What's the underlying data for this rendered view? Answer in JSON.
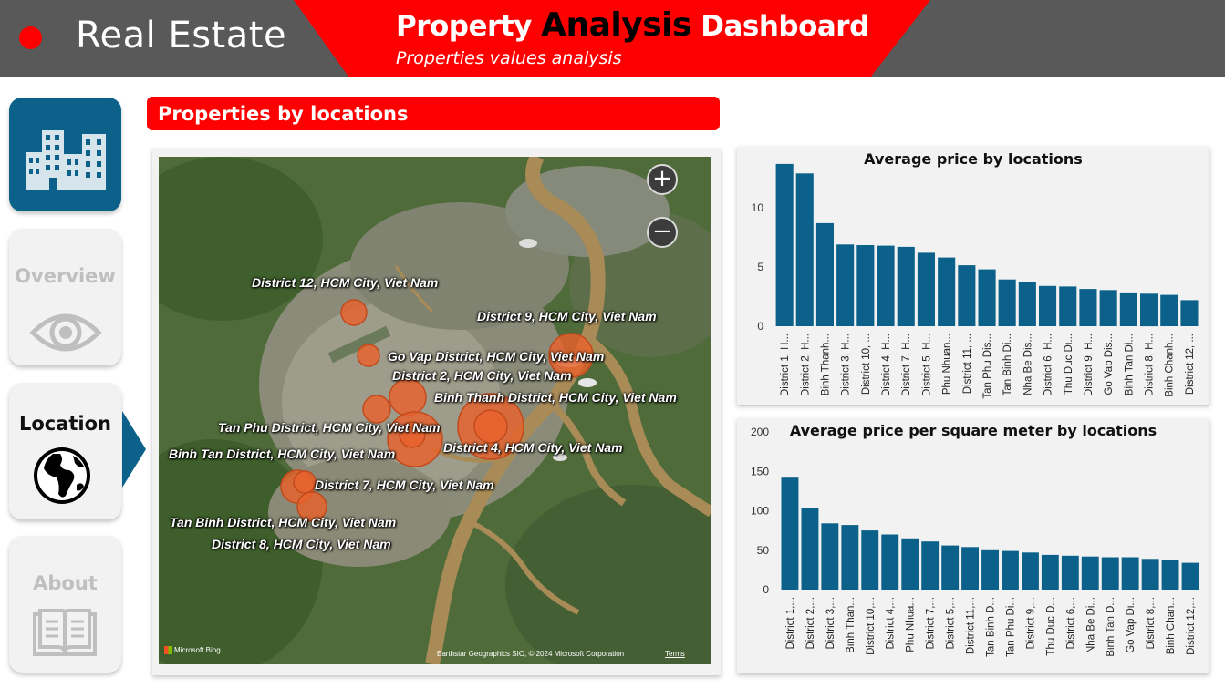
{
  "header": {
    "brand": "Real Estate",
    "title_pre": "Property ",
    "title_accent": "Analysis",
    "title_post": " Dashboard",
    "subtitle": "Properties values analysis"
  },
  "nav": {
    "home_icon": "buildings-icon",
    "items": [
      {
        "label": "Overview",
        "icon": "eye-icon",
        "active": false
      },
      {
        "label": "Location",
        "icon": "globe-icon",
        "active": true
      },
      {
        "label": "About",
        "icon": "book-icon",
        "active": false
      }
    ]
  },
  "section": {
    "title": "Properties by locations"
  },
  "map": {
    "zoom_in": "+",
    "zoom_out": "−",
    "logo": "Microsoft Bing",
    "attribution": "Earthstar Geographics SIO, © 2024 Microsoft Corporation",
    "terms": "Terms",
    "labels": [
      "District 12, HCM City, Viet Nam",
      "District 9, HCM City, Viet Nam",
      "Go Vap District, HCM City, Viet Nam",
      "District 2, HCM City, Viet Nam",
      "Binh Thanh District, HCM City, Viet Nam",
      "Tan Phu District, HCM City, Viet Nam",
      "Binh Tan District, HCM City, Viet Nam",
      "District 4, HCM City, Viet Nam",
      "District 7, HCM City, Viet Nam",
      "Tan Binh District, HCM City, Viet Nam",
      "District 8, HCM City, Viet Nam"
    ]
  },
  "colors": {
    "accent": "#ff0000",
    "header": "#595959",
    "bar": "#0b6189",
    "bubble": "#e8612c"
  },
  "chart_data": [
    {
      "type": "bar",
      "title": "Average price by locations",
      "xlabel": "",
      "ylabel": "",
      "ylim": [
        0,
        14
      ],
      "yticks": [
        0,
        5,
        10
      ],
      "grid": false,
      "categories": [
        "District 1, H...",
        "District 2, H...",
        "Binh Thanh...",
        "District 3, H...",
        "District 10, ...",
        "District 4, H...",
        "District 7, H...",
        "District 5, H...",
        "Phu Nhuan...",
        "District 11, ...",
        "Tan Phu Dis...",
        "Tan Binh Di...",
        "Nha Be Dis...",
        "District 6, H...",
        "Thu Duc Di...",
        "District 9, H...",
        "Go Vap Dis...",
        "Binh Tan Di...",
        "District 8, H...",
        "Binh Chanh...",
        "District 12, ..."
      ],
      "values": [
        13.7,
        12.9,
        8.7,
        6.9,
        6.85,
        6.8,
        6.7,
        6.2,
        5.8,
        5.15,
        4.8,
        3.95,
        3.7,
        3.4,
        3.35,
        3.15,
        3.05,
        2.85,
        2.75,
        2.65,
        2.2
      ]
    },
    {
      "type": "bar",
      "title": "Average price per square meter by locations",
      "xlabel": "",
      "ylabel": "",
      "ylim": [
        0,
        200
      ],
      "yticks": [
        0,
        50,
        100,
        150,
        200
      ],
      "grid": false,
      "categories": [
        "District 1,...",
        "District 2,...",
        "District 3,...",
        "Binh Than...",
        "District 10,...",
        "District 4,...",
        "Phu Nhua...",
        "District 7,...",
        "District 5,...",
        "District 11,...",
        "Tan Binh D...",
        "Tan Phu Di...",
        "District 9,...",
        "Thu Duc D...",
        "District 6,...",
        "Nha Be Di...",
        "Binh Tan D...",
        "Go Vap Di...",
        "District 8,...",
        "Binh Chan...",
        "District 12,..."
      ],
      "values": [
        142,
        103,
        84,
        82,
        75,
        70,
        65,
        61,
        56,
        54,
        50,
        49,
        47,
        44,
        43,
        42,
        41,
        41,
        39,
        37,
        34
      ]
    }
  ]
}
